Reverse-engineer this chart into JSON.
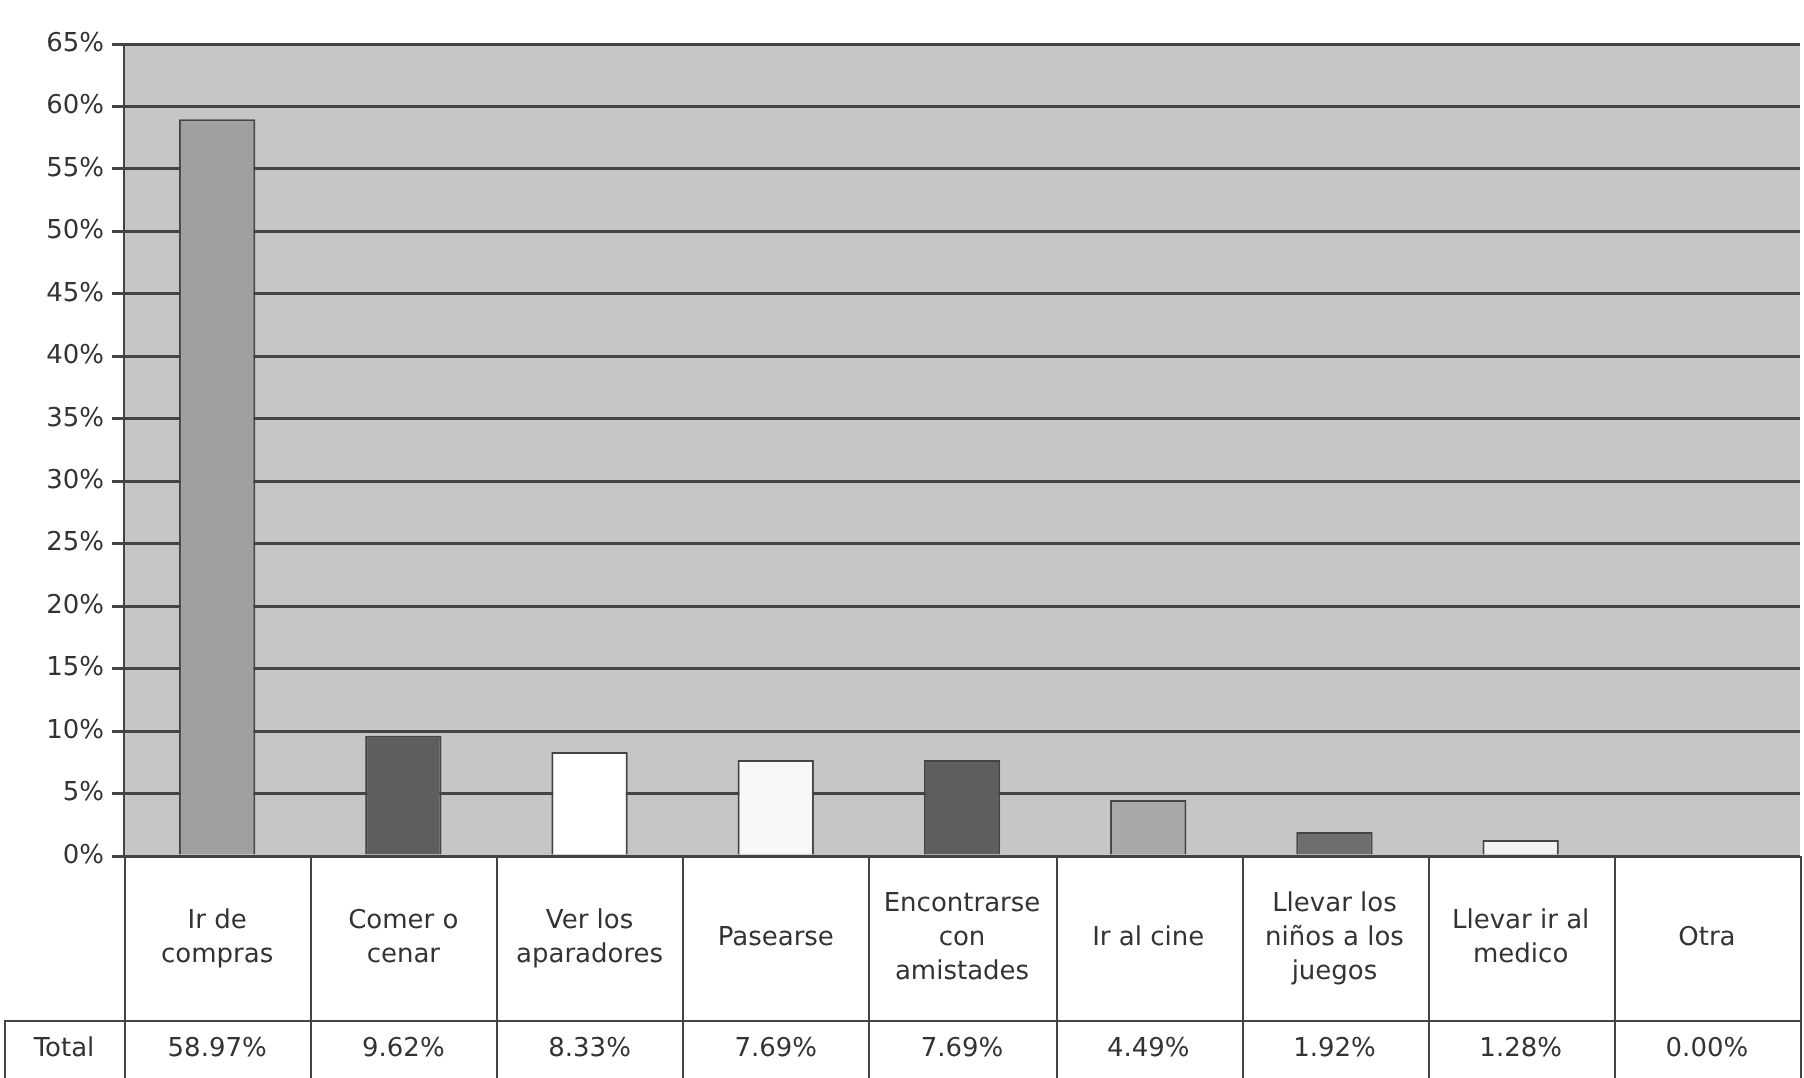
{
  "chart_data": {
    "type": "bar",
    "categories": [
      "Ir de compras",
      "Comer o cenar",
      "Ver los aparadores",
      "Pasearse",
      "Encontrarse con amistades",
      "Ir al cine",
      "Llevar los niños a los juegos",
      "Llevar ir al medico",
      "Otra"
    ],
    "series": [
      {
        "name": "Total",
        "colors": [
          "#a0a0a0",
          "#5e5e5e",
          "#ffffff",
          "#f8f8f8",
          "#5e5e5e",
          "#a8a8a8",
          "#6e6e6e",
          "#f2f2f2",
          "#cccccc"
        ],
        "values": [
          58.97,
          9.62,
          8.33,
          7.69,
          7.69,
          4.49,
          1.92,
          1.28,
          0
        ],
        "value_labels": [
          "58.97%",
          "9.62%",
          "8.33%",
          "7.69%",
          "7.69%",
          "4.49%",
          "1.92%",
          "1.28%",
          "0.00%"
        ]
      }
    ],
    "ylim": [
      0,
      65
    ],
    "yticks": [
      {
        "value": 0,
        "label": "0%"
      },
      {
        "value": 5,
        "label": "5%"
      },
      {
        "value": 10,
        "label": "10%"
      },
      {
        "value": 15,
        "label": "15%"
      },
      {
        "value": 20,
        "label": "20%"
      },
      {
        "value": 25,
        "label": "25%"
      },
      {
        "value": 30,
        "label": "30%"
      },
      {
        "value": 35,
        "label": "35%"
      },
      {
        "value": 40,
        "label": "40%"
      },
      {
        "value": 45,
        "label": "45%"
      },
      {
        "value": 50,
        "label": "50%"
      },
      {
        "value": 55,
        "label": "55%"
      },
      {
        "value": 60,
        "label": "60%"
      },
      {
        "value": 65,
        "label": "65%"
      }
    ],
    "grid": "y",
    "legend": false
  }
}
